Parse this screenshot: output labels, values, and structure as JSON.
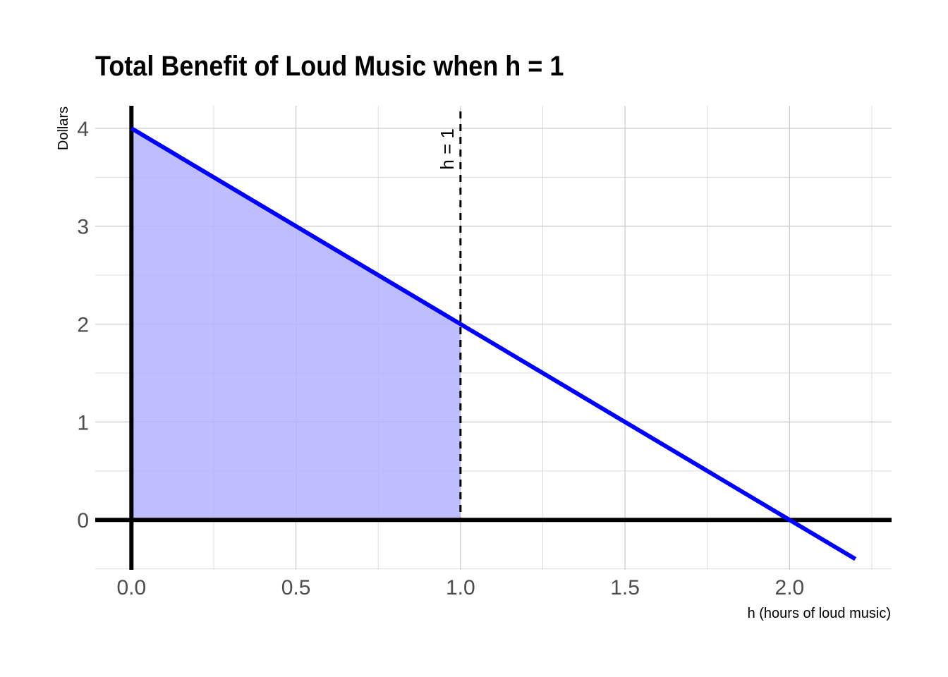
{
  "chart_data": {
    "type": "line",
    "title": "Total Benefit of Loud Music when h = 1",
    "xlabel": "h (hours of loud music)",
    "ylabel": "Dollars",
    "xlim": [
      -0.11,
      2.31
    ],
    "ylim": [
      -0.51,
      4.23
    ],
    "x_ticks": [
      0.0,
      0.5,
      1.0,
      1.5,
      2.0
    ],
    "x_tick_labels": [
      "0.0",
      "0.5",
      "1.0",
      "1.5",
      "2.0"
    ],
    "y_ticks": [
      0,
      1,
      2,
      3,
      4
    ],
    "y_tick_labels": [
      "0",
      "1",
      "2",
      "3",
      "4"
    ],
    "grid": true,
    "series": [
      {
        "x": [
          0,
          2.2
        ],
        "y": [
          4,
          -0.4
        ],
        "color": "#0000ff"
      }
    ],
    "shaded_area": {
      "x": [
        0,
        1
      ],
      "y_top": [
        4,
        2
      ],
      "color": "#b3b3ff"
    },
    "vline": {
      "x": 1,
      "style": "dashed",
      "label": "h = 1"
    },
    "axis_lines": {
      "x": 0,
      "y": 0
    }
  }
}
